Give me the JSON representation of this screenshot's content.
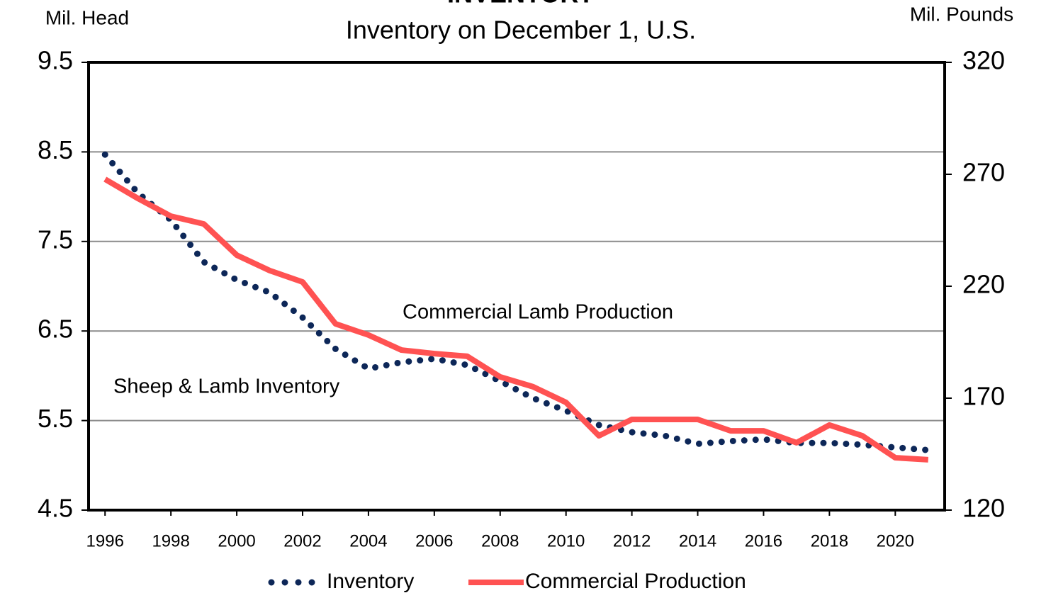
{
  "chart_data": {
    "type": "line",
    "title": "INVENTORY",
    "subtitle": "Inventory on December 1, U.S.",
    "y_label": "Mil. Head",
    "y2_label": "Mil. Pounds",
    "annotations": [
      "Commercial Lamb Production",
      "Sheep & Lamb Inventory"
    ],
    "x": [
      1996,
      1997,
      1998,
      1999,
      2000,
      2001,
      2002,
      2003,
      2004,
      2005,
      2006,
      2007,
      2008,
      2009,
      2010,
      2011,
      2012,
      2013,
      2014,
      2015,
      2016,
      2017,
      2018,
      2019,
      2020,
      2021
    ],
    "xlim": [
      1995.5,
      2021.5
    ],
    "xticks": [
      1996,
      1998,
      2000,
      2002,
      2004,
      2006,
      2008,
      2010,
      2012,
      2014,
      2016,
      2018,
      2020
    ],
    "ylim": [
      4.5,
      9.5
    ],
    "yticks": [
      4.5,
      5.5,
      6.5,
      7.5,
      8.5,
      9.5
    ],
    "y2lim": [
      120,
      320
    ],
    "y2ticks": [
      120,
      170,
      220,
      270,
      320
    ],
    "grid": true,
    "legend": "bottom",
    "series": [
      {
        "name": "Inventory",
        "color": "#0d2758",
        "style": "dotted",
        "values": [
          8.47,
          8.04,
          7.74,
          7.27,
          7.07,
          6.93,
          6.65,
          6.3,
          6.08,
          6.15,
          6.19,
          6.12,
          5.94,
          5.75,
          5.61,
          5.45,
          5.37,
          5.33,
          5.24,
          5.27,
          5.29,
          5.25,
          5.25,
          5.23,
          5.2,
          5.17
        ]
      },
      {
        "name": "Commercial Production",
        "color": "#ff5252",
        "style": "solid",
        "axis": "y2",
        "values": [
          267.8,
          259.2,
          251.3,
          247.8,
          233.9,
          227.0,
          221.9,
          203.2,
          198.2,
          191.5,
          189.9,
          188.7,
          179.5,
          175.1,
          168.1,
          153.2,
          160.5,
          160.5,
          160.5,
          155.4,
          155.4,
          150.1,
          158.0,
          153.2,
          143.4,
          142.5
        ]
      }
    ]
  }
}
